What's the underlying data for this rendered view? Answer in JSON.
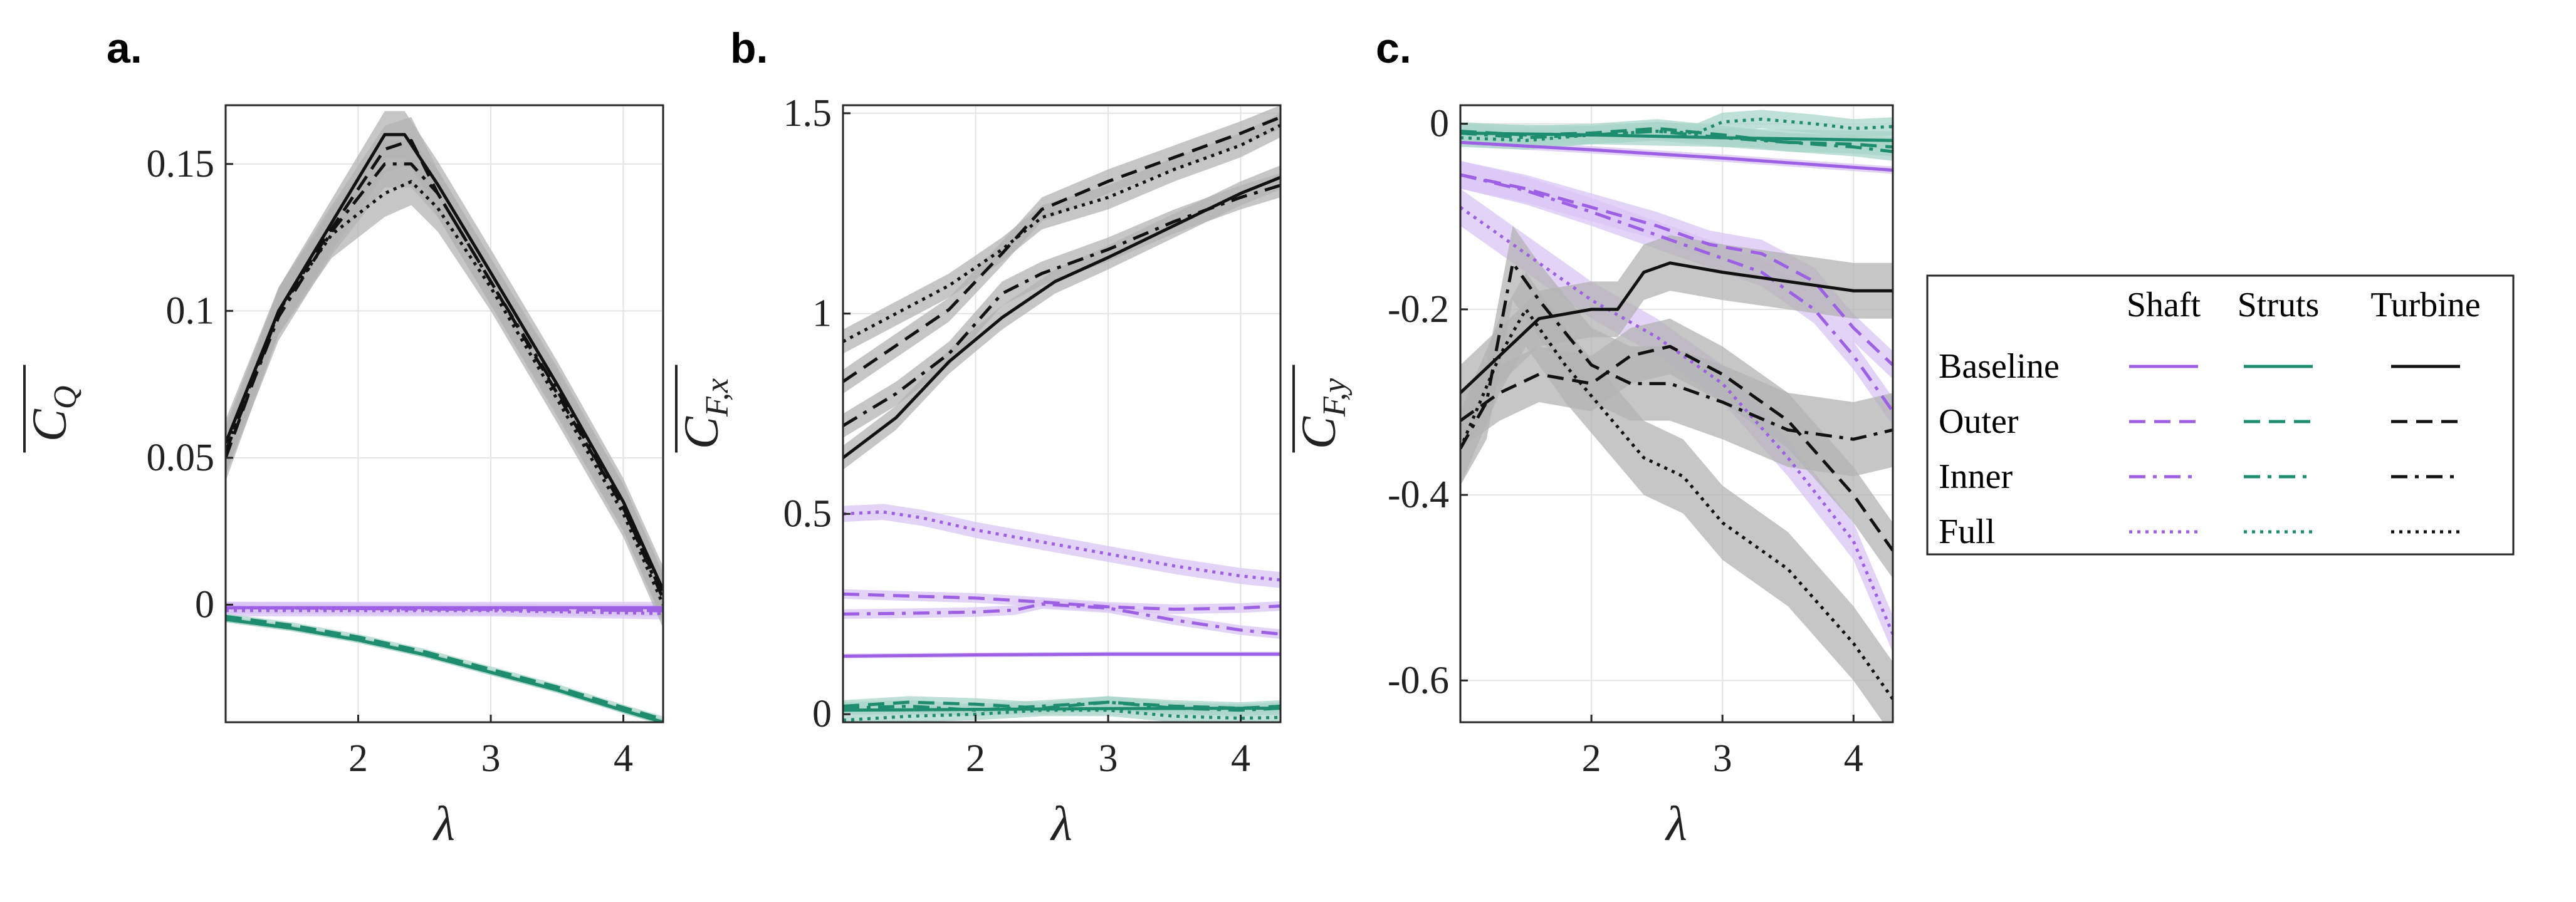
{
  "colors": {
    "shaft": "#9d5fe3",
    "struts": "#1e8c6f",
    "turbine": "#111111",
    "shaft_band": "#d9c5f4",
    "struts_band": "#a9d6c8",
    "turbine_band": "#b3b3b3"
  },
  "legend": {
    "headers": [
      "Shaft",
      "Struts",
      "Turbine"
    ],
    "rows": [
      {
        "label": "Baseline",
        "style": "solid"
      },
      {
        "label": "Outer",
        "style": "dashed"
      },
      {
        "label": "Inner",
        "style": "dashdot"
      },
      {
        "label": "Full",
        "style": "dotted"
      }
    ]
  },
  "chart_data": [
    {
      "type": "line",
      "panel": "a.",
      "xlabel": "λ",
      "ylabel_main": "C",
      "ylabel_sub": "Q",
      "xlim": [
        1.0,
        4.3
      ],
      "ylim": [
        -0.04,
        0.17
      ],
      "xticks": [
        2,
        3,
        4
      ],
      "yticks": [
        0,
        0.05,
        0.1,
        0.15
      ],
      "ytick_labels": [
        "0",
        "0.05",
        "0.1",
        "0.15"
      ],
      "series": [
        {
          "name": "Shaft Baseline",
          "group": "shaft",
          "style": "solid",
          "x": [
            1.0,
            4.3
          ],
          "y": [
            -0.001,
            -0.001
          ],
          "band": 0.002
        },
        {
          "name": "Shaft Outer",
          "group": "shaft",
          "style": "dashed",
          "x": [
            1.0,
            4.3
          ],
          "y": [
            -0.001,
            -0.002
          ],
          "band": 0.002
        },
        {
          "name": "Shaft Inner",
          "group": "shaft",
          "style": "dashdot",
          "x": [
            1.0,
            4.3
          ],
          "y": [
            -0.001,
            -0.002
          ],
          "band": 0.002
        },
        {
          "name": "Shaft Full",
          "group": "shaft",
          "style": "dotted",
          "x": [
            1.0,
            2.0,
            3.0,
            4.3
          ],
          "y": [
            -0.002,
            -0.002,
            -0.002,
            -0.003
          ],
          "band": 0.002
        },
        {
          "name": "Struts Baseline",
          "group": "struts",
          "style": "solid",
          "x": [
            1.0,
            1.5,
            2.0,
            2.5,
            3.0,
            3.5,
            4.0,
            4.3
          ],
          "y": [
            -0.005,
            -0.008,
            -0.012,
            -0.017,
            -0.023,
            -0.029,
            -0.036,
            -0.04
          ],
          "band": 0.001
        },
        {
          "name": "Struts Outer",
          "group": "struts",
          "style": "dashed",
          "x": [
            1.0,
            1.5,
            2.0,
            2.5,
            3.0,
            3.5,
            4.0,
            4.3
          ],
          "y": [
            -0.004,
            -0.007,
            -0.011,
            -0.016,
            -0.022,
            -0.028,
            -0.035,
            -0.039
          ],
          "band": 0.001
        },
        {
          "name": "Struts Inner",
          "group": "struts",
          "style": "dashdot",
          "x": [
            1.0,
            1.5,
            2.0,
            2.5,
            3.0,
            3.5,
            4.0,
            4.3
          ],
          "y": [
            -0.005,
            -0.008,
            -0.012,
            -0.017,
            -0.023,
            -0.029,
            -0.036,
            -0.04
          ],
          "band": 0.001
        },
        {
          "name": "Struts Full",
          "group": "struts",
          "style": "dotted",
          "x": [
            1.0,
            1.5,
            2.0,
            2.5,
            3.0,
            3.5,
            4.0,
            4.3
          ],
          "y": [
            -0.005,
            -0.008,
            -0.012,
            -0.017,
            -0.023,
            -0.029,
            -0.036,
            -0.04
          ],
          "band": 0.001
        },
        {
          "name": "Turbine Baseline",
          "group": "turbine",
          "style": "solid",
          "x": [
            1.0,
            1.4,
            1.8,
            2.2,
            2.35,
            2.6,
            3.0,
            3.5,
            4.0,
            4.3
          ],
          "y": [
            0.055,
            0.1,
            0.13,
            0.16,
            0.16,
            0.143,
            0.113,
            0.075,
            0.035,
            0.005
          ],
          "band": 0.008
        },
        {
          "name": "Turbine Outer",
          "group": "turbine",
          "style": "dashed",
          "x": [
            1.0,
            1.4,
            1.8,
            2.2,
            2.4,
            2.6,
            3.0,
            3.5,
            4.0,
            4.3
          ],
          "y": [
            0.05,
            0.1,
            0.128,
            0.155,
            0.158,
            0.14,
            0.11,
            0.072,
            0.033,
            0.003
          ],
          "band": 0.008
        },
        {
          "name": "Turbine Inner",
          "group": "turbine",
          "style": "dashdot",
          "x": [
            1.0,
            1.4,
            1.8,
            2.2,
            2.4,
            2.6,
            3.0,
            3.5,
            4.0,
            4.3
          ],
          "y": [
            0.052,
            0.098,
            0.127,
            0.15,
            0.15,
            0.14,
            0.11,
            0.073,
            0.033,
            0.002
          ],
          "band": 0.008
        },
        {
          "name": "Turbine Full",
          "group": "turbine",
          "style": "dotted",
          "x": [
            1.0,
            1.4,
            1.8,
            2.2,
            2.4,
            2.6,
            3.0,
            3.5,
            4.0,
            4.3
          ],
          "y": [
            0.053,
            0.1,
            0.126,
            0.14,
            0.144,
            0.135,
            0.108,
            0.07,
            0.031,
            0.0
          ],
          "band": 0.008
        }
      ]
    },
    {
      "type": "line",
      "panel": "b.",
      "xlabel": "λ",
      "ylabel_main": "C",
      "ylabel_sub": "F,x",
      "xlim": [
        1.0,
        4.3
      ],
      "ylim": [
        -0.02,
        1.52
      ],
      "xticks": [
        2,
        3,
        4
      ],
      "yticks": [
        0,
        0.5,
        1,
        1.5
      ],
      "ytick_labels": [
        "0",
        "0.5",
        "1",
        "1.5"
      ],
      "series": [
        {
          "name": "Shaft Baseline",
          "group": "shaft",
          "style": "solid",
          "x": [
            1.0,
            2.0,
            3.0,
            4.3
          ],
          "y": [
            0.145,
            0.148,
            0.15,
            0.15
          ],
          "band": 0.006
        },
        {
          "name": "Shaft Outer",
          "group": "shaft",
          "style": "dashed",
          "x": [
            1.0,
            1.5,
            2.0,
            2.5,
            3.0,
            3.5,
            4.0,
            4.3
          ],
          "y": [
            0.3,
            0.295,
            0.29,
            0.28,
            0.268,
            0.262,
            0.265,
            0.27
          ],
          "band": 0.012
        },
        {
          "name": "Shaft Inner",
          "group": "shaft",
          "style": "dashdot",
          "x": [
            1.0,
            1.5,
            2.0,
            2.3,
            2.5,
            3.0,
            3.5,
            4.0,
            4.3
          ],
          "y": [
            0.25,
            0.252,
            0.255,
            0.26,
            0.275,
            0.265,
            0.235,
            0.21,
            0.2
          ],
          "band": 0.012
        },
        {
          "name": "Shaft Full",
          "group": "shaft",
          "style": "dotted",
          "x": [
            1.0,
            1.3,
            1.6,
            2.0,
            2.5,
            3.0,
            3.5,
            4.0,
            4.3
          ],
          "y": [
            0.5,
            0.505,
            0.49,
            0.46,
            0.43,
            0.4,
            0.37,
            0.345,
            0.335
          ],
          "band": 0.02
        },
        {
          "name": "Struts Baseline",
          "group": "struts",
          "style": "solid",
          "x": [
            1.0,
            2.0,
            3.0,
            4.3
          ],
          "y": [
            0.01,
            0.012,
            0.014,
            0.015
          ],
          "band": 0.01
        },
        {
          "name": "Struts Outer",
          "group": "struts",
          "style": "dashed",
          "x": [
            1.0,
            1.5,
            2.0,
            2.5,
            3.0,
            3.5,
            4.0,
            4.3
          ],
          "y": [
            0.02,
            0.03,
            0.025,
            0.015,
            0.03,
            0.02,
            0.015,
            0.02
          ],
          "band": 0.015
        },
        {
          "name": "Struts Inner",
          "group": "struts",
          "style": "dashdot",
          "x": [
            1.0,
            1.5,
            2.0,
            2.5,
            3.0,
            3.5,
            4.0,
            4.3
          ],
          "y": [
            0.015,
            0.02,
            0.01,
            0.02,
            0.03,
            0.015,
            0.01,
            0.015
          ],
          "band": 0.015
        },
        {
          "name": "Struts Full",
          "group": "struts",
          "style": "dotted",
          "x": [
            1.0,
            1.5,
            2.0,
            2.5,
            3.0,
            3.5,
            4.0,
            4.3
          ],
          "y": [
            -0.015,
            -0.005,
            0.0,
            0.01,
            0.01,
            -0.005,
            -0.01,
            -0.008
          ],
          "band": 0.015
        },
        {
          "name": "Turbine Baseline",
          "group": "turbine",
          "style": "solid",
          "x": [
            1.0,
            1.4,
            1.8,
            2.2,
            2.6,
            3.0,
            3.5,
            4.0,
            4.3
          ],
          "y": [
            0.64,
            0.74,
            0.88,
            0.99,
            1.08,
            1.14,
            1.22,
            1.3,
            1.34
          ],
          "band": 0.03
        },
        {
          "name": "Turbine Outer",
          "group": "turbine",
          "style": "dashed",
          "x": [
            1.0,
            1.4,
            1.8,
            2.2,
            2.5,
            3.0,
            3.5,
            4.0,
            4.3
          ],
          "y": [
            0.83,
            0.92,
            1.01,
            1.15,
            1.26,
            1.33,
            1.39,
            1.45,
            1.49
          ],
          "band": 0.03
        },
        {
          "name": "Turbine Inner",
          "group": "turbine",
          "style": "dashdot",
          "x": [
            1.0,
            1.4,
            1.8,
            2.2,
            2.5,
            3.0,
            3.5,
            4.0,
            4.3
          ],
          "y": [
            0.72,
            0.8,
            0.9,
            1.05,
            1.1,
            1.16,
            1.23,
            1.29,
            1.32
          ],
          "band": 0.03
        },
        {
          "name": "Turbine Full",
          "group": "turbine",
          "style": "dotted",
          "x": [
            1.0,
            1.4,
            1.8,
            2.2,
            2.5,
            3.0,
            3.5,
            4.0,
            4.3
          ],
          "y": [
            0.93,
            1.0,
            1.07,
            1.16,
            1.24,
            1.29,
            1.36,
            1.42,
            1.47
          ],
          "band": 0.03
        }
      ]
    },
    {
      "type": "line",
      "panel": "c.",
      "xlabel": "λ",
      "ylabel_main": "C",
      "ylabel_sub": "F,y",
      "xlim": [
        1.0,
        4.3
      ],
      "ylim": [
        -0.645,
        0.02
      ],
      "xticks": [
        2,
        3,
        4
      ],
      "yticks": [
        0,
        -0.2,
        -0.4,
        -0.6
      ],
      "ytick_labels": [
        "0",
        "-0.2",
        "-0.4",
        "-0.6"
      ],
      "series": [
        {
          "name": "Shaft Baseline",
          "group": "shaft",
          "style": "solid",
          "x": [
            1.0,
            2.0,
            3.0,
            4.3
          ],
          "y": [
            -0.02,
            -0.028,
            -0.037,
            -0.05
          ],
          "band": 0.004
        },
        {
          "name": "Shaft Outer",
          "group": "shaft",
          "style": "dashed",
          "x": [
            1.0,
            1.5,
            2.0,
            2.5,
            2.9,
            3.3,
            3.7,
            4.0,
            4.3
          ],
          "y": [
            -0.055,
            -0.07,
            -0.09,
            -0.11,
            -0.13,
            -0.14,
            -0.17,
            -0.22,
            -0.26
          ],
          "band": 0.015
        },
        {
          "name": "Shaft Inner",
          "group": "shaft",
          "style": "dashdot",
          "x": [
            1.0,
            1.5,
            2.0,
            2.5,
            2.9,
            3.3,
            3.7,
            4.0,
            4.3
          ],
          "y": [
            -0.055,
            -0.072,
            -0.095,
            -0.12,
            -0.14,
            -0.16,
            -0.2,
            -0.25,
            -0.31
          ],
          "band": 0.015
        },
        {
          "name": "Shaft Full",
          "group": "shaft",
          "style": "dotted",
          "x": [
            1.0,
            1.5,
            2.0,
            2.5,
            3.0,
            3.5,
            4.0,
            4.3
          ],
          "y": [
            -0.09,
            -0.14,
            -0.19,
            -0.23,
            -0.28,
            -0.36,
            -0.45,
            -0.55
          ],
          "band": 0.02
        },
        {
          "name": "Struts Baseline",
          "group": "struts",
          "style": "solid",
          "x": [
            1.0,
            2.0,
            3.0,
            4.3
          ],
          "y": [
            -0.01,
            -0.012,
            -0.015,
            -0.018
          ],
          "band": 0.01
        },
        {
          "name": "Struts Outer",
          "group": "struts",
          "style": "dashed",
          "x": [
            1.0,
            1.5,
            2.0,
            2.5,
            3.0,
            3.5,
            4.0,
            4.3
          ],
          "y": [
            -0.008,
            -0.012,
            -0.01,
            -0.005,
            -0.012,
            -0.02,
            -0.022,
            -0.025
          ],
          "band": 0.01
        },
        {
          "name": "Struts Inner",
          "group": "struts",
          "style": "dashdot",
          "x": [
            1.0,
            1.5,
            2.0,
            2.5,
            3.0,
            3.5,
            4.0,
            4.3
          ],
          "y": [
            -0.01,
            -0.015,
            -0.012,
            -0.008,
            -0.015,
            -0.02,
            -0.025,
            -0.03
          ],
          "band": 0.01
        },
        {
          "name": "Struts Full",
          "group": "struts",
          "style": "dotted",
          "x": [
            1.0,
            1.5,
            2.0,
            2.5,
            2.8,
            3.0,
            3.3,
            3.7,
            4.0,
            4.3
          ],
          "y": [
            -0.015,
            -0.018,
            -0.012,
            -0.008,
            -0.01,
            0.002,
            0.005,
            0.0,
            -0.005,
            -0.003
          ],
          "band": 0.01
        },
        {
          "name": "Turbine Baseline",
          "group": "turbine",
          "style": "solid",
          "x": [
            1.0,
            1.3,
            1.6,
            2.0,
            2.2,
            2.4,
            2.6,
            3.0,
            3.5,
            4.0,
            4.3
          ],
          "y": [
            -0.29,
            -0.25,
            -0.21,
            -0.2,
            -0.2,
            -0.16,
            -0.15,
            -0.16,
            -0.17,
            -0.18,
            -0.18
          ],
          "band": 0.03
        },
        {
          "name": "Turbine Outer",
          "group": "turbine",
          "style": "dashed",
          "x": [
            1.0,
            1.3,
            1.6,
            2.0,
            2.3,
            2.6,
            3.0,
            3.5,
            4.0,
            4.3
          ],
          "y": [
            -0.32,
            -0.29,
            -0.27,
            -0.28,
            -0.25,
            -0.24,
            -0.27,
            -0.32,
            -0.4,
            -0.46
          ],
          "band": 0.03
        },
        {
          "name": "Turbine Inner",
          "group": "turbine",
          "style": "dashdot",
          "x": [
            1.0,
            1.2,
            1.4,
            1.6,
            2.0,
            2.3,
            2.6,
            3.0,
            3.5,
            4.0,
            4.3
          ],
          "y": [
            -0.35,
            -0.3,
            -0.15,
            -0.19,
            -0.26,
            -0.28,
            -0.28,
            -0.3,
            -0.33,
            -0.34,
            -0.33
          ],
          "band": 0.04
        },
        {
          "name": "Turbine Full",
          "group": "turbine",
          "style": "dotted",
          "x": [
            1.0,
            1.3,
            1.5,
            1.8,
            2.1,
            2.4,
            2.7,
            3.0,
            3.5,
            4.0,
            4.3
          ],
          "y": [
            -0.35,
            -0.25,
            -0.2,
            -0.26,
            -0.31,
            -0.36,
            -0.38,
            -0.43,
            -0.48,
            -0.56,
            -0.62
          ],
          "band": 0.04
        }
      ]
    }
  ]
}
